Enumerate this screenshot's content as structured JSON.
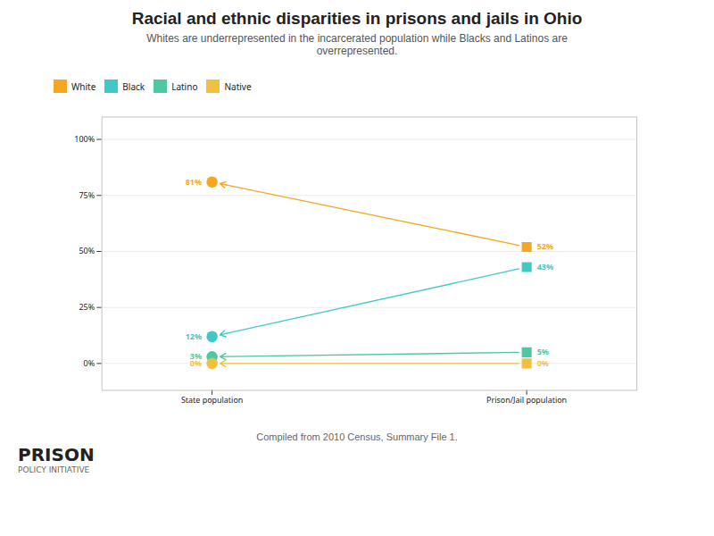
{
  "chart_data": {
    "type": "slope",
    "title": "Racial and ethnic disparities in prisons and jails in Ohio",
    "subtitle": "Whites are underrepresented in the incarcerated population while Blacks and Latinos are\noverrepresented.",
    "caption": "Compiled from 2010 Census, Summary File 1.",
    "annotations": [
      "PRISON",
      "POLICY INITIATIVE"
    ],
    "categories": [
      "State population",
      "Prison/Jail population"
    ],
    "series": [
      {
        "name": "White",
        "color": "#f5a623",
        "line_style": "dotted",
        "values": [
          81,
          52
        ],
        "value_labels": [
          "81%",
          "52%"
        ]
      },
      {
        "name": "Black",
        "color": "#40c8c8",
        "line_style": "dotted",
        "values": [
          12,
          43
        ],
        "value_labels": [
          "12%",
          "43%"
        ]
      },
      {
        "name": "Latino",
        "color": "#4dc8a0",
        "line_style": "dotted",
        "values": [
          3,
          5
        ],
        "value_labels": [
          "3%",
          "5%"
        ]
      },
      {
        "name": "Native",
        "color": "#f0c040",
        "line_style": "dotted",
        "values": [
          0,
          0
        ],
        "value_labels": [
          "0%",
          "0%"
        ]
      }
    ],
    "ylim": [
      -12,
      110
    ],
    "yticks": [
      {
        "value": 0,
        "label": "0%"
      },
      {
        "value": 25,
        "label": "25%"
      },
      {
        "value": 50,
        "label": "50%"
      },
      {
        "value": 75,
        "label": "75%"
      },
      {
        "value": 100,
        "label": "100%"
      }
    ],
    "grid": true,
    "data_labels": true
  }
}
